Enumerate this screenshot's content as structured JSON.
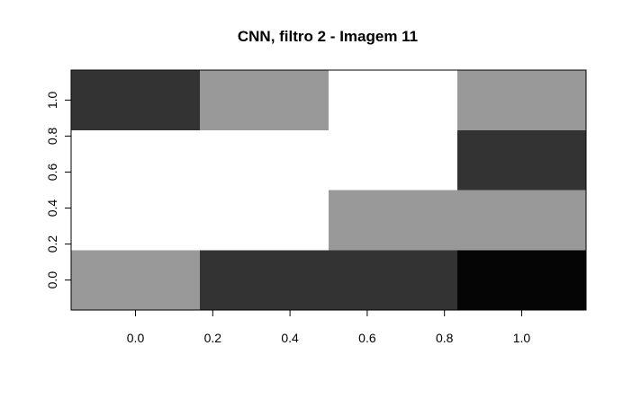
{
  "chart_data": {
    "type": "heatmap",
    "title": "CNN, filtro 2 - Imagem 11",
    "xlabel": "",
    "ylabel": "",
    "colormap": "grayscale (low = black, high = white)",
    "grid": false,
    "legend": "none",
    "columns": 4,
    "rows": 4,
    "xlim": [
      -0.1667,
      1.1667
    ],
    "ylim": [
      -0.1667,
      1.1667
    ],
    "x_ticks": [
      {
        "value": 0.0,
        "label": "0.0"
      },
      {
        "value": 0.2,
        "label": "0.2"
      },
      {
        "value": 0.4,
        "label": "0.4"
      },
      {
        "value": 0.6,
        "label": "0.6"
      },
      {
        "value": 0.8,
        "label": "0.8"
      },
      {
        "value": 1.0,
        "label": "1.0"
      }
    ],
    "y_ticks": [
      {
        "value": 0.0,
        "label": "0.0"
      },
      {
        "value": 0.2,
        "label": "0.2"
      },
      {
        "value": 0.4,
        "label": "0.4"
      },
      {
        "value": 0.6,
        "label": "0.6"
      },
      {
        "value": 0.8,
        "label": "0.8"
      },
      {
        "value": 1.0,
        "label": "1.0"
      }
    ],
    "cells_bottom_to_top": [
      [
        "#999999",
        "#333333",
        "#333333",
        "#050505"
      ],
      [
        "#ffffff",
        "#ffffff",
        "#999999",
        "#999999"
      ],
      [
        "#ffffff",
        "#ffffff",
        "#ffffff",
        "#333333"
      ],
      [
        "#333333",
        "#999999",
        "#ffffff",
        "#999999"
      ]
    ]
  }
}
